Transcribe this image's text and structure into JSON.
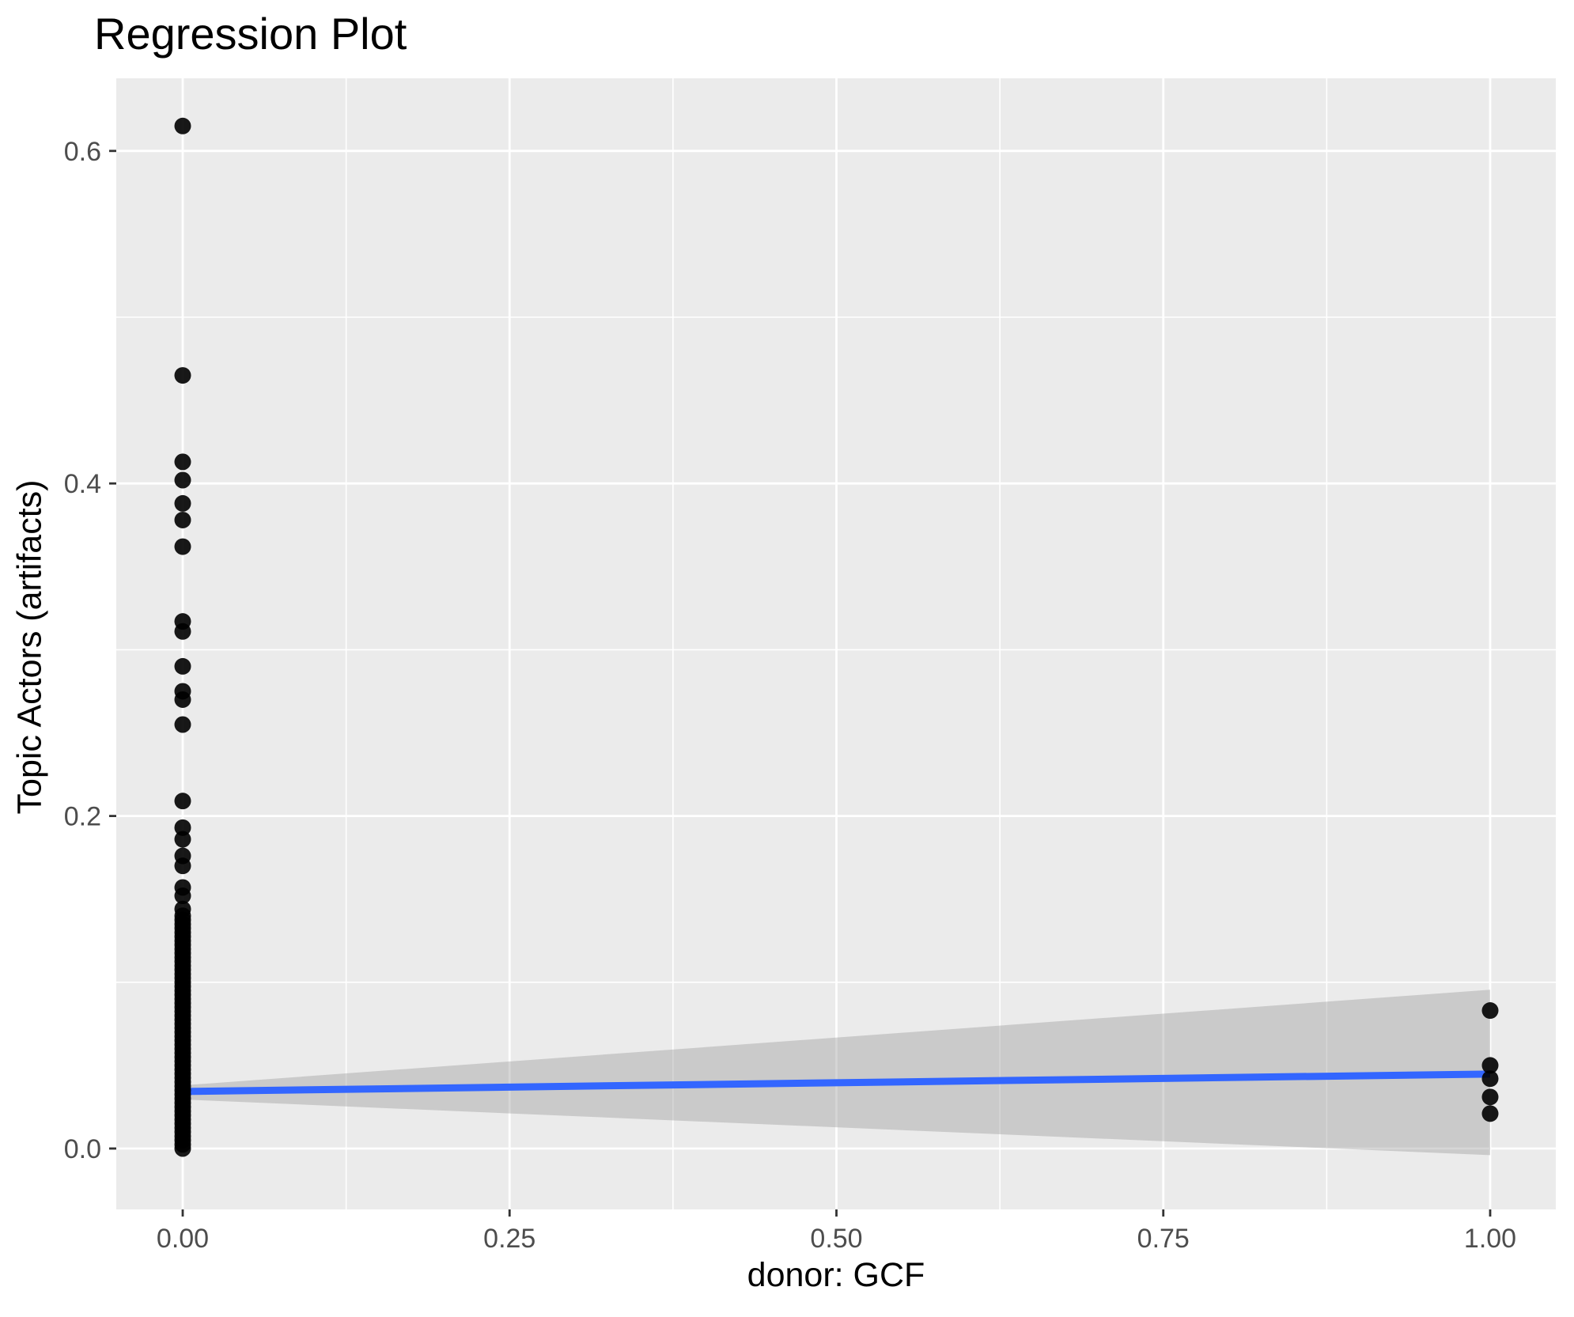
{
  "colors": {
    "panel_bg": "#EBEBEB",
    "gridline": "#FFFFFF",
    "point": "#000000",
    "point_opacity": 0.9,
    "regression_line": "#3366FF",
    "ci_band": "#999999",
    "ci_band_opacity": 0.4,
    "tick_mark": "#333333",
    "tick_text": "#4D4D4D",
    "title_text": "#000000"
  },
  "chart_data": {
    "type": "scatter",
    "title": "Regression Plot",
    "xlabel": "donor: GCF",
    "ylabel": "Topic Actors (artifacts)",
    "xlim": [
      -0.051,
      1.05
    ],
    "ylim": [
      -0.037,
      0.644
    ],
    "grid": "on",
    "legend": "none",
    "x_ticks": [
      0.0,
      0.25,
      0.5,
      0.75,
      1.0
    ],
    "x_tick_labels": [
      "0.00",
      "0.25",
      "0.50",
      "0.75",
      "1.00"
    ],
    "x_minor_ticks": [
      0.125,
      0.375,
      0.625,
      0.875
    ],
    "y_ticks": [
      0.0,
      0.2,
      0.4,
      0.6
    ],
    "y_tick_labels": [
      "0.0",
      "0.2",
      "0.4",
      "0.6"
    ],
    "y_minor_ticks": [
      0.1,
      0.3,
      0.5
    ],
    "series": [
      {
        "name": "donor = 0",
        "x": 0,
        "y": [
          0.615,
          0.465,
          0.413,
          0.402,
          0.388,
          0.378,
          0.362,
          0.317,
          0.311,
          0.29,
          0.275,
          0.27,
          0.255,
          0.209,
          0.193,
          0.186,
          0.176,
          0.17,
          0.157,
          0.152,
          0.144,
          0.14,
          0.1375,
          0.135,
          0.1325,
          0.13,
          0.1275,
          0.125,
          0.1225,
          0.12,
          0.1175,
          0.115,
          0.1125,
          0.11,
          0.1075,
          0.105,
          0.1025,
          0.1,
          0.0975,
          0.095,
          0.0925,
          0.09,
          0.0875,
          0.085,
          0.0825,
          0.08,
          0.0775,
          0.075,
          0.0725,
          0.07,
          0.0675,
          0.065,
          0.0625,
          0.06,
          0.0575,
          0.055,
          0.0525,
          0.05,
          0.0475,
          0.045,
          0.0425,
          0.04,
          0.0375,
          0.035,
          0.0325,
          0.03,
          0.0275,
          0.025,
          0.0225,
          0.02,
          0.0175,
          0.015,
          0.0125,
          0.01,
          0.0075,
          0.005,
          0.0025,
          0.0
        ]
      },
      {
        "name": "donor = 1",
        "x": 1,
        "y": [
          0.083,
          0.05,
          0.042,
          0.031,
          0.021
        ]
      }
    ],
    "regression": {
      "line": {
        "x": [
          0,
          1
        ],
        "y": [
          0.0343,
          0.0448
        ]
      },
      "ci_band": {
        "x": [
          0,
          1
        ],
        "upper": [
          0.038,
          0.0955
        ],
        "lower": [
          0.0295,
          -0.004
        ]
      }
    }
  }
}
